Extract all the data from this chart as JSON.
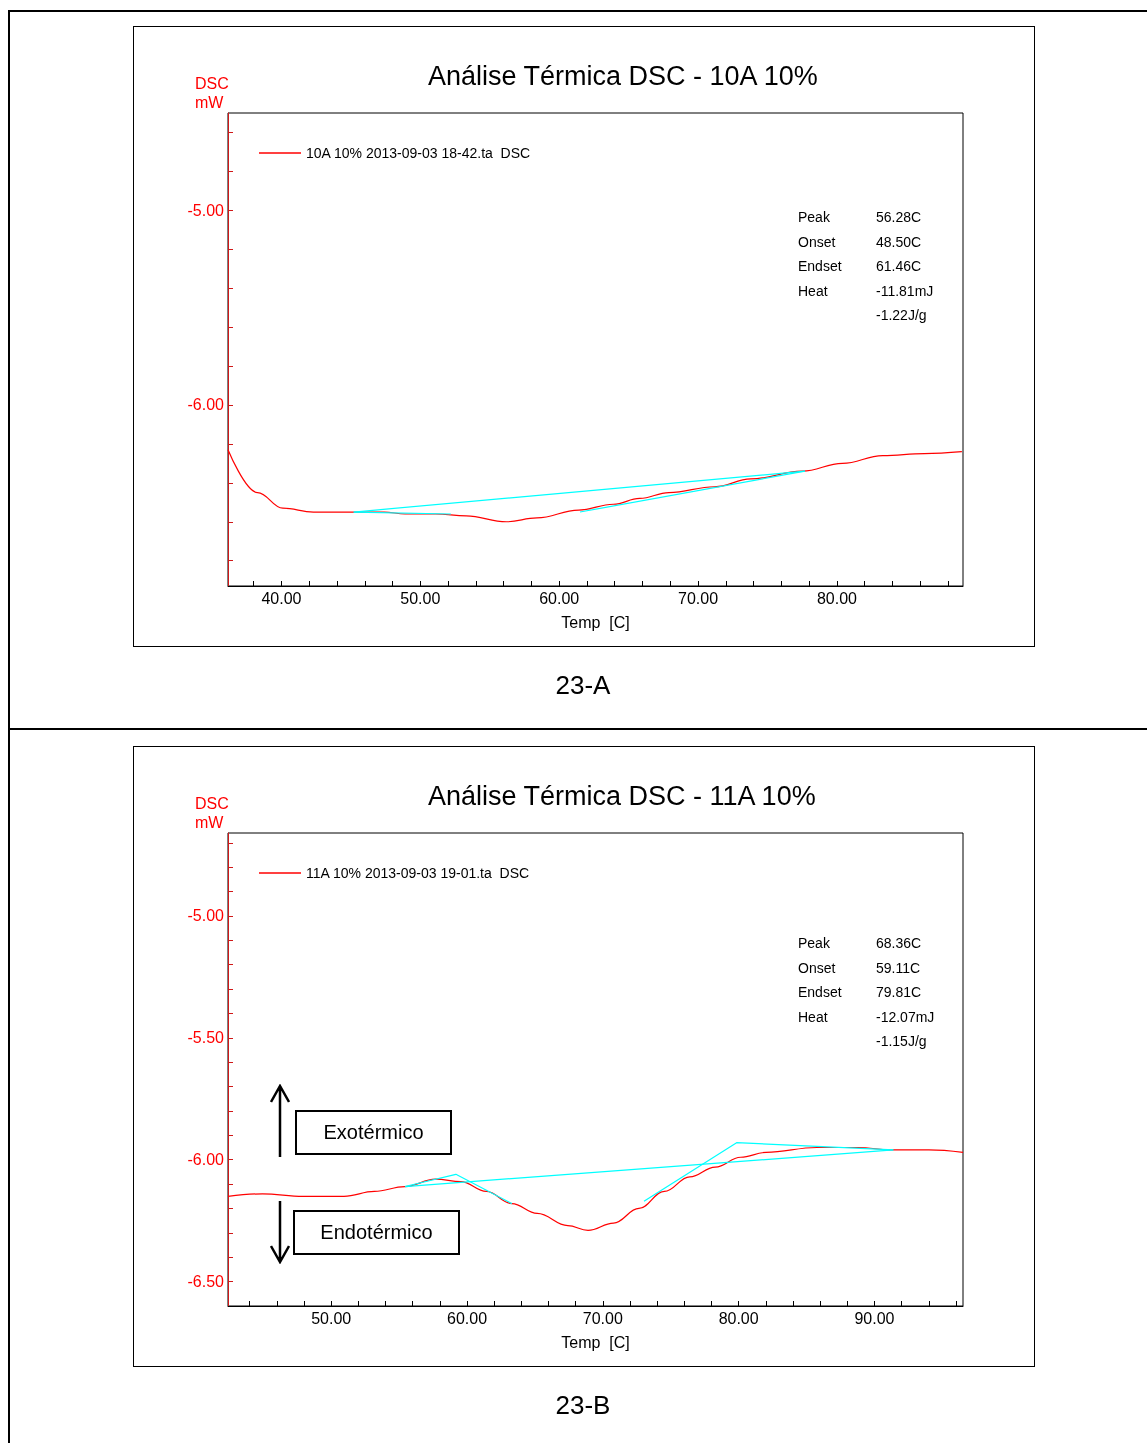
{
  "chart_data": [
    {
      "type": "line",
      "title": "Análise Térmica DSC - 10A 10%",
      "xlabel": "Temp  [C]",
      "ylabel": "DSC\nmW",
      "legend": "top left",
      "marker": "none",
      "grid": false,
      "annotations": [
        "Peak\nOnset\nEndset\nHeat",
        "56.28C\n48.50C\n61.46C\n-11.81mJ\n-1.22J/g",
        "23-A"
      ],
      "xlim": [
        36.15,
        89.08
      ],
      "ylim": [
        -6.93,
        -4.5
      ],
      "xticks": [
        {
          "value": 38,
          "label": null
        },
        {
          "value": 40,
          "label": "40.00"
        },
        {
          "value": 42,
          "label": null
        },
        {
          "value": 44,
          "label": null
        },
        {
          "value": 46,
          "label": null
        },
        {
          "value": 48,
          "label": null
        },
        {
          "value": 50,
          "label": "50.00"
        },
        {
          "value": 52,
          "label": null
        },
        {
          "value": 54,
          "label": null
        },
        {
          "value": 56,
          "label": null
        },
        {
          "value": 58,
          "label": null
        },
        {
          "value": 60,
          "label": "60.00"
        },
        {
          "value": 62,
          "label": null
        },
        {
          "value": 64,
          "label": null
        },
        {
          "value": 66,
          "label": null
        },
        {
          "value": 68,
          "label": null
        },
        {
          "value": 70,
          "label": "70.00"
        },
        {
          "value": 72,
          "label": null
        },
        {
          "value": 74,
          "label": null
        },
        {
          "value": 76,
          "label": null
        },
        {
          "value": 78,
          "label": null
        },
        {
          "value": 80,
          "label": "80.00"
        },
        {
          "value": 82,
          "label": null
        },
        {
          "value": 84,
          "label": null
        },
        {
          "value": 86,
          "label": null
        },
        {
          "value": 88,
          "label": null
        }
      ],
      "yticks": [
        {
          "value": -6.8,
          "label": null
        },
        {
          "value": -6.6,
          "label": null
        },
        {
          "value": -6.4,
          "label": null
        },
        {
          "value": -6.2,
          "label": null
        },
        {
          "value": -6,
          "label": "-6.00"
        },
        {
          "value": -5.8,
          "label": null
        },
        {
          "value": -5.6,
          "label": null
        },
        {
          "value": -5.4,
          "label": null
        },
        {
          "value": -5.2,
          "label": null
        },
        {
          "value": -5,
          "label": "-5.00"
        },
        {
          "value": -4.8,
          "label": null
        },
        {
          "value": -4.6,
          "label": null
        }
      ],
      "series": [
        {
          "name": "10A 10% 2013-09-03 18-42.ta  DSC",
          "color": "#ff0000",
          "x": [
            36.15,
            38.28,
            40.1,
            42.3,
            45.2,
            47.4,
            48.9,
            51.1,
            53.3,
            56.2,
            58.4,
            61.4,
            63.9,
            65.8,
            67.9,
            71.2,
            73.8,
            77.5,
            80.4,
            83.3,
            86.3,
            89.0
          ],
          "values": [
            -6.23,
            -6.45,
            -6.53,
            -6.55,
            -6.55,
            -6.55,
            -6.56,
            -6.56,
            -6.57,
            -6.6,
            -6.58,
            -6.54,
            -6.51,
            -6.48,
            -6.45,
            -6.42,
            -6.38,
            -6.34,
            -6.3,
            -6.26,
            -6.25,
            -6.24
          ]
        },
        {
          "type": "line",
          "color": "#00ffff",
          "x": [
            45.2,
            77.7
          ],
          "values": [
            -6.55,
            -6.34
          ]
        },
        {
          "type": "line",
          "color": "#00ffff",
          "x": [
            45.2,
            52.2
          ],
          "values": [
            -6.55,
            -6.56
          ]
        },
        {
          "type": "line",
          "color": "#00ffff",
          "x": [
            61.5,
            77.7
          ],
          "values": [
            -6.55,
            -6.34
          ]
        }
      ]
    },
    {
      "type": "line",
      "title": "Análise Térmica DSC - 11A 10%",
      "xlabel": "Temp  [C]",
      "ylabel": "DSC\nmW",
      "legend": "top left",
      "marker": "none",
      "grid": false,
      "annotations": [
        "Peak\nOnset\nEndset\nHeat",
        "68.36C\n59.11C\n79.81C\n-12.07mJ\n-1.15J/g",
        "23-B",
        "Exotérmico",
        "Endotérmico"
      ],
      "xlim": [
        42.4,
        96.52
      ],
      "ylim": [
        -6.6,
        -4.66
      ],
      "xticks": [
        {
          "value": 44,
          "label": null
        },
        {
          "value": 46,
          "label": null
        },
        {
          "value": 48,
          "label": null
        },
        {
          "value": 50,
          "label": "50.00"
        },
        {
          "value": 52,
          "label": null
        },
        {
          "value": 54,
          "label": null
        },
        {
          "value": 56,
          "label": null
        },
        {
          "value": 58,
          "label": null
        },
        {
          "value": 60,
          "label": "60.00"
        },
        {
          "value": 62,
          "label": null
        },
        {
          "value": 64,
          "label": null
        },
        {
          "value": 66,
          "label": null
        },
        {
          "value": 68,
          "label": null
        },
        {
          "value": 70,
          "label": "70.00"
        },
        {
          "value": 72,
          "label": null
        },
        {
          "value": 74,
          "label": null
        },
        {
          "value": 76,
          "label": null
        },
        {
          "value": 78,
          "label": null
        },
        {
          "value": 80,
          "label": "80.00"
        },
        {
          "value": 82,
          "label": null
        },
        {
          "value": 84,
          "label": null
        },
        {
          "value": 86,
          "label": null
        },
        {
          "value": 88,
          "label": null
        },
        {
          "value": 90,
          "label": "90.00"
        },
        {
          "value": 92,
          "label": null
        },
        {
          "value": 94,
          "label": null
        },
        {
          "value": 96,
          "label": null
        }
      ],
      "yticks": [
        {
          "value": -6.5,
          "label": "-6.50"
        },
        {
          "value": -6.4,
          "label": null
        },
        {
          "value": -6.3,
          "label": null
        },
        {
          "value": -6.2,
          "label": null
        },
        {
          "value": -6.1,
          "label": null
        },
        {
          "value": -6,
          "label": "-6.00"
        },
        {
          "value": -5.9,
          "label": null
        },
        {
          "value": -5.8,
          "label": null
        },
        {
          "value": -5.7,
          "label": null
        },
        {
          "value": -5.6,
          "label": null
        },
        {
          "value": -5.5,
          "label": "-5.50"
        },
        {
          "value": -5.4,
          "label": null
        },
        {
          "value": -5.3,
          "label": null
        },
        {
          "value": -5.2,
          "label": null
        },
        {
          "value": -5.1,
          "label": null
        },
        {
          "value": -5,
          "label": "-5.00"
        },
        {
          "value": -4.9,
          "label": null
        },
        {
          "value": -4.8,
          "label": null
        },
        {
          "value": -4.7,
          "label": null
        }
      ],
      "series": [
        {
          "name": "11A 10% 2013-09-03 19-01.ta  DSC",
          "color": "#ff0000",
          "x": [
            42.4,
            44.94,
            47.94,
            50.94,
            53.18,
            55.43,
            57.68,
            59.55,
            61.42,
            63.3,
            65.17,
            67.42,
            68.91,
            70.79,
            72.66,
            74.53,
            76.4,
            78.28,
            80.15,
            82.02,
            85.77,
            88.76,
            91.39,
            94.01,
            96.52
          ],
          "values": [
            -6.15,
            -6.14,
            -6.15,
            -6.15,
            -6.13,
            -6.11,
            -6.08,
            -6.09,
            -6.13,
            -6.18,
            -6.22,
            -6.27,
            -6.29,
            -6.26,
            -6.2,
            -6.13,
            -6.07,
            -6.03,
            -5.99,
            -5.97,
            -5.95,
            -5.95,
            -5.96,
            -5.96,
            -5.97
          ]
        },
        {
          "type": "line",
          "color": "#00ffff",
          "x": [
            55.43,
            91.39
          ],
          "values": [
            -6.11,
            -5.96
          ]
        },
        {
          "type": "line",
          "color": "#00ffff",
          "x": [
            55.43,
            59.18,
            63.3
          ],
          "values": [
            -6.11,
            -6.06,
            -6.18
          ]
        },
        {
          "type": "line",
          "color": "#00ffff",
          "x": [
            73.03,
            79.85,
            91.39
          ],
          "values": [
            -6.17,
            -5.93,
            -5.96
          ]
        }
      ]
    }
  ]
}
